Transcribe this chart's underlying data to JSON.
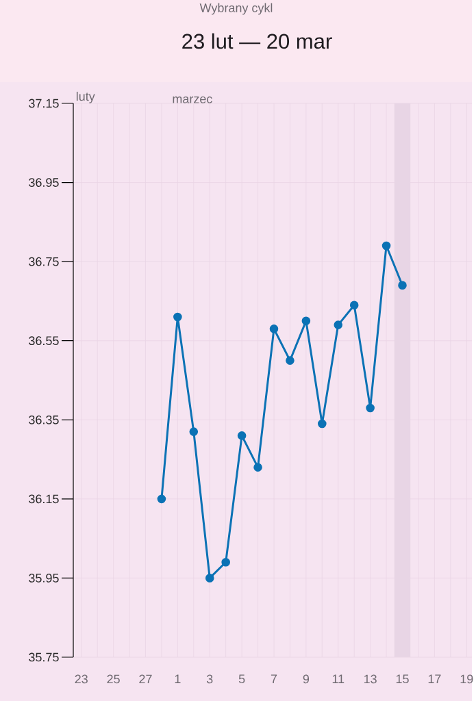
{
  "chart_data": {
    "type": "line",
    "title": "23 lut — 20 mar",
    "subtitle": "Wybrany cykl",
    "categories": [
      "23",
      null,
      "25",
      null,
      "27",
      null,
      "1",
      null,
      "3",
      null,
      "5",
      null,
      "7",
      null,
      "9",
      null,
      "11",
      null,
      "13",
      null,
      "15",
      null,
      "17",
      null,
      "19"
    ],
    "series": [
      {
        "color": "#0b72b5",
        "values": [
          null,
          null,
          null,
          null,
          null,
          36.15,
          36.61,
          36.32,
          35.95,
          35.99,
          36.31,
          36.23,
          36.58,
          36.5,
          36.6,
          36.34,
          36.59,
          36.64,
          36.38,
          36.79,
          36.69,
          null,
          null,
          null,
          null
        ]
      }
    ],
    "ylim": [
      35.75,
      37.15
    ],
    "yticks": [
      35.75,
      35.95,
      36.15,
      36.35,
      36.55,
      36.75,
      36.95,
      37.15
    ],
    "grid": true,
    "marker": "circle",
    "line_style": "solid",
    "bands": [
      {
        "axis": "x",
        "from": "15",
        "to": "15",
        "color": "#e8d5e5"
      }
    ],
    "annotations": [
      "luty",
      "marzec"
    ]
  }
}
